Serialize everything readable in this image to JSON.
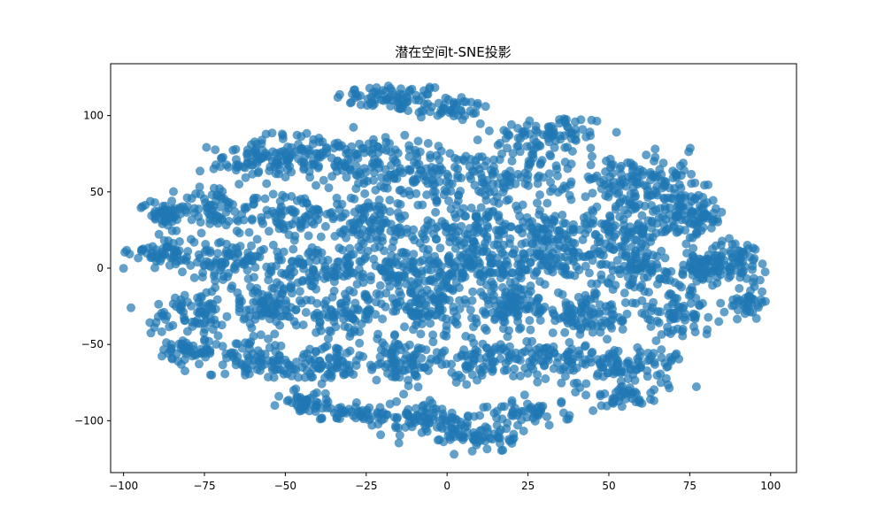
{
  "chart_data": {
    "type": "scatter",
    "title": "潜在空间t-SNE投影",
    "xlabel": "",
    "ylabel": "",
    "xlim": [
      -104,
      108
    ],
    "ylim": [
      -134,
      134
    ],
    "x_ticks": [
      -100,
      -75,
      -50,
      -25,
      0,
      25,
      50,
      75,
      100
    ],
    "x_tick_labels": [
      "−100",
      "−75",
      "−50",
      "−25",
      "0",
      "25",
      "50",
      "75",
      "100"
    ],
    "y_ticks": [
      -100,
      -50,
      0,
      50,
      100
    ],
    "y_tick_labels": [
      "−100",
      "−50",
      "0",
      "50",
      "100"
    ],
    "grid": false,
    "series": [
      {
        "color": "#1f77b4",
        "opacity": 0.7,
        "clusters": [
          {
            "cx": -17,
            "cy": 112,
            "rx": 16,
            "ry": 8,
            "n": 70
          },
          {
            "cx": 0,
            "cy": 105,
            "rx": 12,
            "ry": 8,
            "n": 45
          },
          {
            "cx": 32,
            "cy": 88,
            "rx": 16,
            "ry": 12,
            "n": 80
          },
          {
            "cx": -60,
            "cy": 70,
            "rx": 12,
            "ry": 14,
            "n": 75
          },
          {
            "cx": -45,
            "cy": 75,
            "rx": 12,
            "ry": 12,
            "n": 60
          },
          {
            "cx": -28,
            "cy": 70,
            "rx": 14,
            "ry": 16,
            "n": 90
          },
          {
            "cx": -5,
            "cy": 60,
            "rx": 18,
            "ry": 20,
            "n": 120
          },
          {
            "cx": 20,
            "cy": 60,
            "rx": 15,
            "ry": 18,
            "n": 100
          },
          {
            "cx": 55,
            "cy": 55,
            "rx": 16,
            "ry": 16,
            "n": 100
          },
          {
            "cx": 70,
            "cy": 45,
            "rx": 10,
            "ry": 25,
            "n": 80
          },
          {
            "cx": -88,
            "cy": 36,
            "rx": 6,
            "ry": 8,
            "n": 45
          },
          {
            "cx": -72,
            "cy": 40,
            "rx": 10,
            "ry": 14,
            "n": 65
          },
          {
            "cx": -50,
            "cy": 35,
            "rx": 14,
            "ry": 14,
            "n": 80
          },
          {
            "cx": -25,
            "cy": 30,
            "rx": 14,
            "ry": 14,
            "n": 90
          },
          {
            "cx": 5,
            "cy": 25,
            "rx": 14,
            "ry": 16,
            "n": 100
          },
          {
            "cx": 30,
            "cy": 25,
            "rx": 14,
            "ry": 14,
            "n": 95
          },
          {
            "cx": 55,
            "cy": 25,
            "rx": 15,
            "ry": 13,
            "n": 95
          },
          {
            "cx": 77,
            "cy": 33,
            "rx": 8,
            "ry": 10,
            "n": 55
          },
          {
            "cx": -87,
            "cy": 10,
            "rx": 10,
            "ry": 10,
            "n": 65
          },
          {
            "cx": -65,
            "cy": 5,
            "rx": 12,
            "ry": 14,
            "n": 85
          },
          {
            "cx": -40,
            "cy": 0,
            "rx": 14,
            "ry": 14,
            "n": 100
          },
          {
            "cx": -15,
            "cy": 0,
            "rx": 14,
            "ry": 14,
            "n": 100
          },
          {
            "cx": 10,
            "cy": 0,
            "rx": 14,
            "ry": 14,
            "n": 100
          },
          {
            "cx": 35,
            "cy": 5,
            "rx": 14,
            "ry": 14,
            "n": 100
          },
          {
            "cx": 60,
            "cy": 0,
            "rx": 12,
            "ry": 12,
            "n": 80
          },
          {
            "cx": 78,
            "cy": 0,
            "rx": 8,
            "ry": 10,
            "n": 55
          },
          {
            "cx": 90,
            "cy": 5,
            "rx": 8,
            "ry": 12,
            "n": 70
          },
          {
            "cx": 93,
            "cy": -22,
            "rx": 5,
            "ry": 10,
            "n": 35
          },
          {
            "cx": -78,
            "cy": -30,
            "rx": 12,
            "ry": 14,
            "n": 80
          },
          {
            "cx": -55,
            "cy": -25,
            "rx": 14,
            "ry": 14,
            "n": 90
          },
          {
            "cx": -30,
            "cy": -30,
            "rx": 14,
            "ry": 14,
            "n": 95
          },
          {
            "cx": -5,
            "cy": -25,
            "rx": 14,
            "ry": 14,
            "n": 100
          },
          {
            "cx": 20,
            "cy": -25,
            "rx": 14,
            "ry": 14,
            "n": 100
          },
          {
            "cx": 45,
            "cy": -30,
            "rx": 14,
            "ry": 14,
            "n": 95
          },
          {
            "cx": 70,
            "cy": -30,
            "rx": 12,
            "ry": 12,
            "n": 75
          },
          {
            "cx": -80,
            "cy": -55,
            "rx": 8,
            "ry": 8,
            "n": 50
          },
          {
            "cx": -60,
            "cy": -60,
            "rx": 12,
            "ry": 10,
            "n": 70
          },
          {
            "cx": -40,
            "cy": -65,
            "rx": 12,
            "ry": 12,
            "n": 80
          },
          {
            "cx": -15,
            "cy": -60,
            "rx": 14,
            "ry": 12,
            "n": 90
          },
          {
            "cx": 10,
            "cy": -60,
            "rx": 14,
            "ry": 14,
            "n": 90
          },
          {
            "cx": 35,
            "cy": -60,
            "rx": 14,
            "ry": 12,
            "n": 85
          },
          {
            "cx": 58,
            "cy": -65,
            "rx": 14,
            "ry": 12,
            "n": 80
          },
          {
            "cx": -45,
            "cy": -88,
            "rx": 8,
            "ry": 6,
            "n": 45
          },
          {
            "cx": -25,
            "cy": -95,
            "rx": 12,
            "ry": 8,
            "n": 55
          },
          {
            "cx": -5,
            "cy": -100,
            "rx": 14,
            "ry": 10,
            "n": 75
          },
          {
            "cx": 10,
            "cy": -110,
            "rx": 10,
            "ry": 10,
            "n": 60
          },
          {
            "cx": 25,
            "cy": -95,
            "rx": 12,
            "ry": 8,
            "n": 55
          },
          {
            "cx": 55,
            "cy": -85,
            "rx": 8,
            "ry": 6,
            "n": 35
          }
        ]
      }
    ]
  }
}
